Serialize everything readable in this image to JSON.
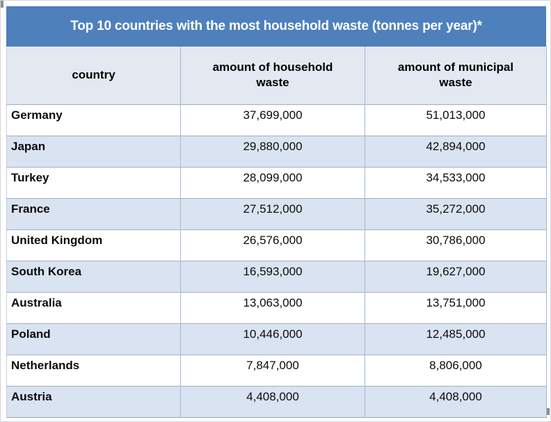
{
  "title_bar": {
    "text": "Top 10 countries with the most household waste (tonnes per year)*"
  },
  "table": {
    "headers": [
      "country",
      "amount of household waste",
      "amount of municipal waste"
    ],
    "rows": [
      {
        "country": "Germany",
        "household": "37,699,000",
        "municipal": "51,013,000"
      },
      {
        "country": "Japan",
        "household": "29,880,000",
        "municipal": "42,894,000"
      },
      {
        "country": "Turkey",
        "household": "28,099,000",
        "municipal": "34,533,000"
      },
      {
        "country": "France",
        "household": "27,512,000",
        "municipal": "35,272,000"
      },
      {
        "country": "United Kingdom",
        "household": "26,576,000",
        "municipal": "30,786,000"
      },
      {
        "country": "South Korea",
        "household": "16,593,000",
        "municipal": "19,627,000"
      },
      {
        "country": "Australia",
        "household": "13,063,000",
        "municipal": "13,751,000"
      },
      {
        "country": "Poland",
        "household": "10,446,000",
        "municipal": "12,485,000"
      },
      {
        "country": "Netherlands",
        "household": "7,847,000",
        "municipal": "8,806,000"
      },
      {
        "country": "Austria",
        "household": "4,408,000",
        "municipal": "4,408,000"
      }
    ]
  },
  "colors": {
    "title_bar_bg": "#4E80BC",
    "title_text": "#FFFFFF",
    "header_row_bg": "#E3E8F1",
    "stripe_row_bg": "#DAE3F1",
    "row_divider": "#9FAFC0",
    "column_divider": "#A3B9D2"
  },
  "chart_data": {
    "type": "table",
    "title": "Top 10 countries with the most household waste (tonnes per year)*",
    "columns": [
      "country",
      "amount of household waste",
      "amount of municipal waste"
    ],
    "rows": [
      [
        "Germany",
        37699000,
        51013000
      ],
      [
        "Japan",
        29880000,
        42894000
      ],
      [
        "Turkey",
        28099000,
        34533000
      ],
      [
        "France",
        27512000,
        35272000
      ],
      [
        "United Kingdom",
        26576000,
        30786000
      ],
      [
        "South Korea",
        16593000,
        19627000
      ],
      [
        "Australia",
        13063000,
        13751000
      ],
      [
        "Poland",
        10446000,
        12485000
      ],
      [
        "Netherlands",
        7847000,
        8806000
      ],
      [
        "Austria",
        4408000,
        4408000
      ]
    ]
  }
}
